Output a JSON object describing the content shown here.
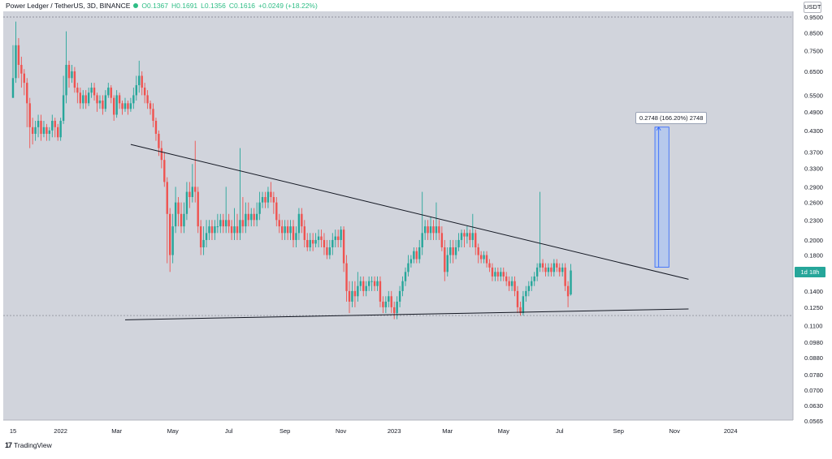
{
  "header": {
    "symbol": "Power Ledger / TetherUS, 3D, BINANCE",
    "open": "O0.1367",
    "high": "H0.1691",
    "low": "L0.1356",
    "close": "C0.1616",
    "change": "+0.0249 (+18.22%)"
  },
  "currency_badge": "USDT",
  "price_tag": "1d 18h",
  "measure_label": "0.2748 (166.20%) 2748",
  "footer": {
    "logo_text": "TradingView",
    "logo_mark": "17"
  },
  "colors": {
    "plot_background": "#d1d4dc",
    "up_candle": "#26a69a",
    "down_candle": "#ef5350",
    "trendline": "#131722",
    "measure_fill": "#b3c7ef",
    "measure_stroke": "#2962ff"
  },
  "chart_data": {
    "type": "candlestick",
    "scale": "log",
    "ylim": [
      0.0565,
      0.95
    ],
    "y_ticks": [
      "0.9500",
      "0.8500",
      "0.7500",
      "0.6500",
      "0.5500",
      "0.4900",
      "0.4300",
      "0.3700",
      "0.3300",
      "0.2900",
      "0.2600",
      "0.2300",
      "0.2000",
      "0.1800",
      "0.1600",
      "0.1400",
      "0.1250",
      "0.1100",
      "0.0980",
      "0.0880",
      "0.0780",
      "0.0700",
      "0.0630",
      "0.0565"
    ],
    "x_ticks": [
      "15",
      "2022",
      "Mar",
      "May",
      "Jul",
      "Sep",
      "Nov",
      "2023",
      "Mar",
      "May",
      "Jul",
      "Sep",
      "Nov",
      "2024"
    ],
    "x_tick_index": [
      0,
      17,
      37,
      57,
      77,
      97,
      117,
      136,
      155,
      175,
      195,
      216,
      236,
      256
    ],
    "candles": [
      [
        0.54,
        0.62,
        0.54,
        0.78
      ],
      [
        0.62,
        0.78,
        0.6,
        0.92
      ],
      [
        0.78,
        0.68,
        0.62,
        0.82
      ],
      [
        0.68,
        0.64,
        0.58,
        0.72
      ],
      [
        0.64,
        0.6,
        0.55,
        0.66
      ],
      [
        0.6,
        0.52,
        0.44,
        0.62
      ],
      [
        0.52,
        0.44,
        0.38,
        0.54
      ],
      [
        0.44,
        0.42,
        0.39,
        0.47
      ],
      [
        0.42,
        0.44,
        0.4,
        0.46
      ],
      [
        0.44,
        0.46,
        0.41,
        0.48
      ],
      [
        0.46,
        0.42,
        0.4,
        0.48
      ],
      [
        0.42,
        0.44,
        0.41,
        0.46
      ],
      [
        0.44,
        0.42,
        0.4,
        0.45
      ],
      [
        0.42,
        0.43,
        0.4,
        0.44
      ],
      [
        0.43,
        0.46,
        0.41,
        0.48
      ],
      [
        0.46,
        0.44,
        0.41,
        0.47
      ],
      [
        0.44,
        0.41,
        0.4,
        0.45
      ],
      [
        0.41,
        0.46,
        0.4,
        0.47
      ],
      [
        0.46,
        0.55,
        0.45,
        0.63
      ],
      [
        0.55,
        0.68,
        0.52,
        0.86
      ],
      [
        0.68,
        0.62,
        0.58,
        0.7
      ],
      [
        0.62,
        0.65,
        0.6,
        0.68
      ],
      [
        0.65,
        0.58,
        0.56,
        0.67
      ],
      [
        0.58,
        0.56,
        0.52,
        0.6
      ],
      [
        0.56,
        0.52,
        0.5,
        0.58
      ],
      [
        0.52,
        0.55,
        0.5,
        0.57
      ],
      [
        0.55,
        0.52,
        0.5,
        0.57
      ],
      [
        0.52,
        0.56,
        0.51,
        0.58
      ],
      [
        0.56,
        0.58,
        0.54,
        0.6
      ],
      [
        0.58,
        0.55,
        0.53,
        0.6
      ],
      [
        0.55,
        0.52,
        0.49,
        0.56
      ],
      [
        0.52,
        0.53,
        0.5,
        0.55
      ],
      [
        0.53,
        0.5,
        0.48,
        0.55
      ],
      [
        0.5,
        0.55,
        0.49,
        0.57
      ],
      [
        0.55,
        0.58,
        0.54,
        0.6
      ],
      [
        0.58,
        0.54,
        0.52,
        0.59
      ],
      [
        0.54,
        0.48,
        0.46,
        0.55
      ],
      [
        0.48,
        0.55,
        0.47,
        0.57
      ],
      [
        0.55,
        0.52,
        0.5,
        0.56
      ],
      [
        0.52,
        0.5,
        0.48,
        0.53
      ],
      [
        0.5,
        0.52,
        0.49,
        0.54
      ],
      [
        0.52,
        0.5,
        0.48,
        0.53
      ],
      [
        0.5,
        0.52,
        0.49,
        0.54
      ],
      [
        0.52,
        0.55,
        0.5,
        0.58
      ],
      [
        0.55,
        0.59,
        0.53,
        0.63
      ],
      [
        0.59,
        0.63,
        0.56,
        0.7
      ],
      [
        0.63,
        0.58,
        0.55,
        0.65
      ],
      [
        0.58,
        0.55,
        0.52,
        0.6
      ],
      [
        0.55,
        0.52,
        0.5,
        0.57
      ],
      [
        0.52,
        0.5,
        0.48,
        0.53
      ],
      [
        0.5,
        0.46,
        0.44,
        0.52
      ],
      [
        0.46,
        0.42,
        0.4,
        0.47
      ],
      [
        0.42,
        0.38,
        0.36,
        0.43
      ],
      [
        0.38,
        0.35,
        0.33,
        0.4
      ],
      [
        0.35,
        0.3,
        0.29,
        0.37
      ],
      [
        0.3,
        0.24,
        0.17,
        0.31
      ],
      [
        0.24,
        0.18,
        0.16,
        0.25
      ],
      [
        0.18,
        0.22,
        0.17,
        0.24
      ],
      [
        0.22,
        0.26,
        0.21,
        0.29
      ],
      [
        0.26,
        0.24,
        0.22,
        0.27
      ],
      [
        0.24,
        0.22,
        0.21,
        0.26
      ],
      [
        0.22,
        0.24,
        0.21,
        0.26
      ],
      [
        0.24,
        0.28,
        0.23,
        0.3
      ],
      [
        0.28,
        0.27,
        0.25,
        0.3
      ],
      [
        0.27,
        0.29,
        0.26,
        0.34
      ],
      [
        0.29,
        0.28,
        0.26,
        0.4
      ],
      [
        0.28,
        0.22,
        0.21,
        0.29
      ],
      [
        0.22,
        0.19,
        0.18,
        0.23
      ],
      [
        0.19,
        0.2,
        0.18,
        0.22
      ],
      [
        0.2,
        0.21,
        0.19,
        0.23
      ],
      [
        0.21,
        0.22,
        0.2,
        0.23
      ],
      [
        0.22,
        0.21,
        0.2,
        0.23
      ],
      [
        0.21,
        0.22,
        0.2,
        0.23
      ],
      [
        0.22,
        0.22,
        0.21,
        0.24
      ],
      [
        0.22,
        0.23,
        0.21,
        0.24
      ],
      [
        0.23,
        0.22,
        0.21,
        0.24
      ],
      [
        0.22,
        0.23,
        0.21,
        0.29
      ],
      [
        0.23,
        0.22,
        0.21,
        0.24
      ],
      [
        0.22,
        0.21,
        0.2,
        0.23
      ],
      [
        0.21,
        0.22,
        0.2,
        0.25
      ],
      [
        0.22,
        0.21,
        0.2,
        0.24
      ],
      [
        0.21,
        0.23,
        0.2,
        0.38
      ],
      [
        0.23,
        0.22,
        0.21,
        0.27
      ],
      [
        0.22,
        0.24,
        0.21,
        0.26
      ],
      [
        0.24,
        0.23,
        0.22,
        0.26
      ],
      [
        0.23,
        0.24,
        0.22,
        0.25
      ],
      [
        0.24,
        0.23,
        0.22,
        0.25
      ],
      [
        0.23,
        0.24,
        0.22,
        0.26
      ],
      [
        0.24,
        0.26,
        0.23,
        0.28
      ],
      [
        0.26,
        0.27,
        0.25,
        0.28
      ],
      [
        0.27,
        0.26,
        0.25,
        0.28
      ],
      [
        0.26,
        0.28,
        0.25,
        0.29
      ],
      [
        0.28,
        0.27,
        0.26,
        0.3
      ],
      [
        0.27,
        0.26,
        0.24,
        0.28
      ],
      [
        0.26,
        0.23,
        0.22,
        0.27
      ],
      [
        0.23,
        0.22,
        0.21,
        0.24
      ],
      [
        0.22,
        0.21,
        0.2,
        0.23
      ],
      [
        0.21,
        0.22,
        0.2,
        0.23
      ],
      [
        0.22,
        0.21,
        0.2,
        0.23
      ],
      [
        0.21,
        0.22,
        0.2,
        0.23
      ],
      [
        0.22,
        0.2,
        0.19,
        0.23
      ],
      [
        0.2,
        0.21,
        0.19,
        0.22
      ],
      [
        0.21,
        0.24,
        0.2,
        0.25
      ],
      [
        0.24,
        0.22,
        0.21,
        0.25
      ],
      [
        0.22,
        0.2,
        0.19,
        0.23
      ],
      [
        0.2,
        0.19,
        0.185,
        0.21
      ],
      [
        0.19,
        0.2,
        0.185,
        0.21
      ],
      [
        0.2,
        0.195,
        0.185,
        0.21
      ],
      [
        0.195,
        0.2,
        0.19,
        0.21
      ],
      [
        0.2,
        0.205,
        0.19,
        0.215
      ],
      [
        0.205,
        0.2,
        0.19,
        0.215
      ],
      [
        0.2,
        0.19,
        0.18,
        0.21
      ],
      [
        0.19,
        0.18,
        0.175,
        0.2
      ],
      [
        0.18,
        0.19,
        0.175,
        0.2
      ],
      [
        0.19,
        0.2,
        0.18,
        0.21
      ],
      [
        0.2,
        0.205,
        0.19,
        0.215
      ],
      [
        0.205,
        0.2,
        0.19,
        0.215
      ],
      [
        0.2,
        0.215,
        0.19,
        0.22
      ],
      [
        0.215,
        0.17,
        0.16,
        0.22
      ],
      [
        0.17,
        0.14,
        0.13,
        0.18
      ],
      [
        0.14,
        0.13,
        0.12,
        0.15
      ],
      [
        0.13,
        0.14,
        0.125,
        0.15
      ],
      [
        0.14,
        0.135,
        0.125,
        0.15
      ],
      [
        0.135,
        0.145,
        0.13,
        0.16
      ],
      [
        0.145,
        0.15,
        0.14,
        0.155
      ],
      [
        0.15,
        0.14,
        0.135,
        0.155
      ],
      [
        0.14,
        0.145,
        0.135,
        0.15
      ],
      [
        0.145,
        0.15,
        0.14,
        0.155
      ],
      [
        0.15,
        0.15,
        0.14,
        0.155
      ],
      [
        0.15,
        0.145,
        0.14,
        0.155
      ],
      [
        0.145,
        0.15,
        0.14,
        0.155
      ],
      [
        0.15,
        0.13,
        0.125,
        0.155
      ],
      [
        0.13,
        0.125,
        0.12,
        0.135
      ],
      [
        0.125,
        0.13,
        0.12,
        0.135
      ],
      [
        0.13,
        0.135,
        0.125,
        0.14
      ],
      [
        0.135,
        0.125,
        0.12,
        0.14
      ],
      [
        0.125,
        0.12,
        0.115,
        0.13
      ],
      [
        0.12,
        0.13,
        0.115,
        0.135
      ],
      [
        0.13,
        0.14,
        0.125,
        0.145
      ],
      [
        0.14,
        0.15,
        0.135,
        0.155
      ],
      [
        0.15,
        0.16,
        0.145,
        0.165
      ],
      [
        0.16,
        0.17,
        0.155,
        0.18
      ],
      [
        0.17,
        0.175,
        0.165,
        0.18
      ],
      [
        0.175,
        0.185,
        0.17,
        0.19
      ],
      [
        0.185,
        0.175,
        0.17,
        0.19
      ],
      [
        0.175,
        0.19,
        0.17,
        0.2
      ],
      [
        0.19,
        0.21,
        0.18,
        0.28
      ],
      [
        0.21,
        0.22,
        0.2,
        0.23
      ],
      [
        0.22,
        0.21,
        0.2,
        0.23
      ],
      [
        0.21,
        0.22,
        0.2,
        0.235
      ],
      [
        0.22,
        0.21,
        0.2,
        0.23
      ],
      [
        0.21,
        0.22,
        0.2,
        0.26
      ],
      [
        0.22,
        0.21,
        0.2,
        0.23
      ],
      [
        0.21,
        0.19,
        0.185,
        0.22
      ],
      [
        0.19,
        0.16,
        0.15,
        0.2
      ],
      [
        0.16,
        0.18,
        0.155,
        0.19
      ],
      [
        0.18,
        0.19,
        0.17,
        0.2
      ],
      [
        0.19,
        0.18,
        0.17,
        0.2
      ],
      [
        0.18,
        0.19,
        0.175,
        0.2
      ],
      [
        0.19,
        0.2,
        0.185,
        0.21
      ],
      [
        0.2,
        0.21,
        0.19,
        0.215
      ],
      [
        0.21,
        0.205,
        0.19,
        0.215
      ],
      [
        0.205,
        0.21,
        0.195,
        0.22
      ],
      [
        0.21,
        0.2,
        0.19,
        0.215
      ],
      [
        0.2,
        0.21,
        0.19,
        0.24
      ],
      [
        0.21,
        0.19,
        0.18,
        0.215
      ],
      [
        0.19,
        0.18,
        0.17,
        0.195
      ],
      [
        0.18,
        0.175,
        0.17,
        0.185
      ],
      [
        0.175,
        0.18,
        0.17,
        0.185
      ],
      [
        0.18,
        0.17,
        0.165,
        0.185
      ],
      [
        0.17,
        0.165,
        0.16,
        0.175
      ],
      [
        0.165,
        0.155,
        0.15,
        0.17
      ],
      [
        0.155,
        0.16,
        0.15,
        0.165
      ],
      [
        0.16,
        0.155,
        0.15,
        0.165
      ],
      [
        0.155,
        0.16,
        0.15,
        0.165
      ],
      [
        0.16,
        0.155,
        0.15,
        0.165
      ],
      [
        0.155,
        0.15,
        0.145,
        0.16
      ],
      [
        0.15,
        0.145,
        0.14,
        0.155
      ],
      [
        0.145,
        0.15,
        0.14,
        0.155
      ],
      [
        0.15,
        0.14,
        0.135,
        0.155
      ],
      [
        0.14,
        0.125,
        0.12,
        0.145
      ],
      [
        0.125,
        0.12,
        0.118,
        0.13
      ],
      [
        0.12,
        0.135,
        0.118,
        0.14
      ],
      [
        0.135,
        0.14,
        0.13,
        0.145
      ],
      [
        0.14,
        0.145,
        0.135,
        0.15
      ],
      [
        0.145,
        0.15,
        0.14,
        0.155
      ],
      [
        0.15,
        0.155,
        0.145,
        0.16
      ],
      [
        0.155,
        0.165,
        0.15,
        0.17
      ],
      [
        0.165,
        0.17,
        0.16,
        0.28
      ],
      [
        0.17,
        0.165,
        0.16,
        0.175
      ],
      [
        0.165,
        0.16,
        0.155,
        0.17
      ],
      [
        0.16,
        0.165,
        0.155,
        0.17
      ],
      [
        0.165,
        0.16,
        0.155,
        0.17
      ],
      [
        0.16,
        0.17,
        0.155,
        0.175
      ],
      [
        0.17,
        0.165,
        0.16,
        0.175
      ],
      [
        0.165,
        0.16,
        0.155,
        0.17
      ],
      [
        0.16,
        0.165,
        0.155,
        0.17
      ],
      [
        0.165,
        0.145,
        0.14,
        0.17
      ],
      [
        0.145,
        0.135,
        0.125,
        0.15
      ],
      [
        0.1367,
        0.1616,
        0.1356,
        0.1691
      ]
    ],
    "trendlines": [
      {
        "name": "upper",
        "points": [
          [
            42,
            0.39
          ],
          [
            241,
            0.152
          ]
        ]
      },
      {
        "name": "lower",
        "points": [
          [
            40,
            0.1145
          ],
          [
            241,
            0.1235
          ]
        ]
      }
    ],
    "horizontal_levels": [
      0.95,
      0.118
    ],
    "measure": {
      "x_start": 229,
      "x_end": 234,
      "y_start": 0.1654,
      "y_end": 0.4402
    }
  }
}
